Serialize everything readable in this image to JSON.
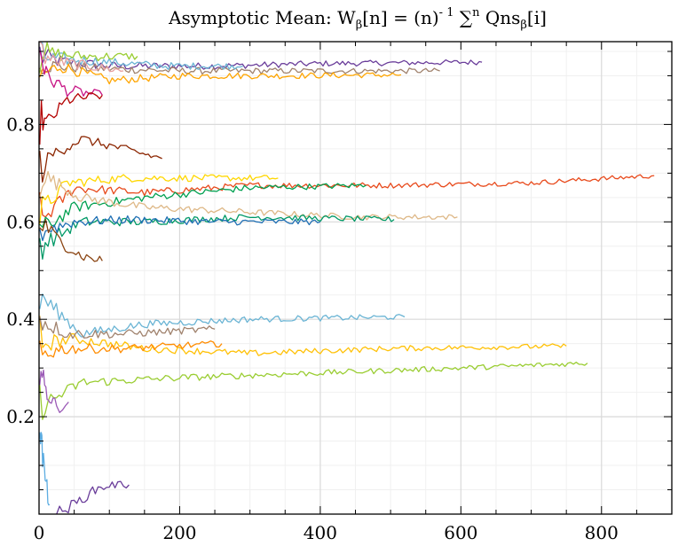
{
  "chart_data": {
    "type": "line",
    "title": {
      "prefix": "Asymptotic Mean: W",
      "sub1": "β",
      "mid1": "[n] = (n)",
      "sup1": "- 1",
      "sum": " ∑",
      "sup2": "n",
      "mid2": " Qns",
      "sub2": "β",
      "suffix": "[i]"
    },
    "xlabel": "",
    "ylabel": "",
    "xlim": [
      0,
      900
    ],
    "ylim": [
      0,
      0.97
    ],
    "x_ticks": [
      0,
      200,
      400,
      600,
      800
    ],
    "x_tick_labels": [
      "0",
      "200",
      "400",
      "600",
      "800"
    ],
    "y_ticks": [
      0.2,
      0.4,
      0.6,
      0.8
    ],
    "y_tick_labels": [
      "0.2",
      "0.4",
      "0.6",
      "0.8"
    ],
    "grid": true,
    "legend": "none",
    "series": [
      {
        "color": "#6a3d9a",
        "x": [
          1,
          30,
          100,
          250,
          400,
          630
        ],
        "y": [
          0.94,
          0.93,
          0.92,
          0.92,
          0.925,
          0.928
        ]
      },
      {
        "color": "#a0826d",
        "x": [
          1,
          20,
          80,
          200,
          400,
          570
        ],
        "y": [
          0.93,
          0.92,
          0.915,
          0.91,
          0.91,
          0.91
        ]
      },
      {
        "color": "#ffa500",
        "x": [
          1,
          30,
          100,
          200,
          350,
          515
        ],
        "y": [
          0.9,
          0.92,
          0.89,
          0.9,
          0.9,
          0.902
        ]
      },
      {
        "color": "#6ab4d4",
        "x": [
          1,
          20,
          80,
          180,
          290
        ],
        "y": [
          0.94,
          0.935,
          0.93,
          0.92,
          0.92
        ]
      },
      {
        "color": "#9acd32",
        "x": [
          1,
          15,
          60,
          140
        ],
        "y": [
          0.96,
          0.945,
          0.94,
          0.94
        ]
      },
      {
        "color": "#e8a0a0",
        "x": [
          1,
          20,
          70,
          120
        ],
        "y": [
          0.95,
          0.93,
          0.92,
          0.91
        ]
      },
      {
        "color": "#c71585",
        "x": [
          1,
          10,
          40,
          90
        ],
        "y": [
          0.96,
          0.9,
          0.87,
          0.86
        ]
      },
      {
        "color": "#b30000",
        "x": [
          1,
          10,
          40,
          90
        ],
        "y": [
          0.82,
          0.8,
          0.85,
          0.86
        ]
      },
      {
        "color": "#e84a1c",
        "x": [
          1,
          50,
          150,
          300,
          500,
          700,
          875
        ],
        "y": [
          0.6,
          0.67,
          0.66,
          0.675,
          0.675,
          0.68,
          0.695
        ]
      },
      {
        "color": "#ffd700",
        "x": [
          1,
          40,
          120,
          200,
          340
        ],
        "y": [
          0.62,
          0.68,
          0.69,
          0.69,
          0.69
        ]
      },
      {
        "color": "#00a050",
        "x": [
          1,
          50,
          150,
          300,
          465
        ],
        "y": [
          0.58,
          0.63,
          0.65,
          0.67,
          0.675
        ]
      },
      {
        "color": "#deb887",
        "x": [
          1,
          60,
          150,
          300,
          450,
          595
        ],
        "y": [
          0.7,
          0.65,
          0.63,
          0.62,
          0.61,
          0.61
        ]
      },
      {
        "color": "#009966",
        "x": [
          1,
          60,
          150,
          300,
          505
        ],
        "y": [
          0.55,
          0.6,
          0.6,
          0.61,
          0.605
        ]
      },
      {
        "color": "#1f6fb4",
        "x": [
          1,
          50,
          130,
          250,
          400
        ],
        "y": [
          0.58,
          0.6,
          0.605,
          0.6,
          0.6
        ]
      },
      {
        "color": "#8b2500",
        "x": [
          1,
          20,
          60,
          120,
          175
        ],
        "y": [
          0.7,
          0.74,
          0.77,
          0.75,
          0.73
        ]
      },
      {
        "color": "#8b4513",
        "x": [
          1,
          30,
          60,
          90
        ],
        "y": [
          0.6,
          0.56,
          0.53,
          0.52
        ]
      },
      {
        "color": "#6ab4d4",
        "x": [
          1,
          60,
          150,
          300,
          520
        ],
        "y": [
          0.45,
          0.37,
          0.39,
          0.4,
          0.405
        ]
      },
      {
        "color": "#ffc107",
        "x": [
          1,
          50,
          150,
          300,
          500,
          750
        ],
        "y": [
          0.35,
          0.36,
          0.34,
          0.33,
          0.34,
          0.345
        ]
      },
      {
        "color": "#9acd32",
        "x": [
          1,
          60,
          200,
          400,
          600,
          780
        ],
        "y": [
          0.22,
          0.27,
          0.28,
          0.29,
          0.3,
          0.31
        ]
      },
      {
        "color": "#a0826d",
        "x": [
          1,
          40,
          120,
          250
        ],
        "y": [
          0.4,
          0.37,
          0.37,
          0.38
        ]
      },
      {
        "color": "#ff8c00",
        "x": [
          1,
          40,
          120,
          260
        ],
        "y": [
          0.33,
          0.34,
          0.34,
          0.35
        ]
      },
      {
        "color": "#9b59b6",
        "x": [
          1,
          8,
          15,
          25,
          42
        ],
        "y": [
          0.3,
          0.26,
          0.24,
          0.22,
          0.23
        ]
      },
      {
        "color": "#6a3d9a",
        "x": [
          25,
          50,
          80,
          100,
          128
        ],
        "y": [
          0.0,
          0.02,
          0.05,
          0.06,
          0.06
        ]
      },
      {
        "color": "#5dade2",
        "x": [
          1,
          5,
          10,
          15
        ],
        "y": [
          0.2,
          0.12,
          0.06,
          0.02
        ]
      }
    ]
  }
}
